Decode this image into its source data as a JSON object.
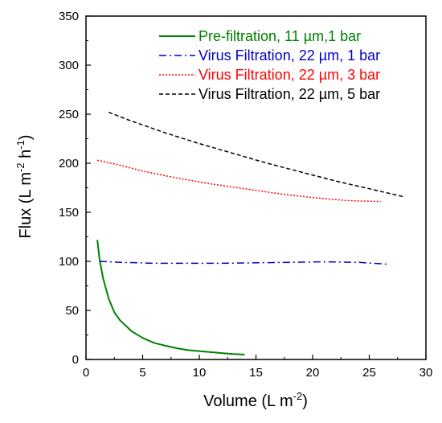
{
  "chart_data": {
    "type": "line",
    "title": "",
    "xlabel": {
      "base": "Volume (L m",
      "sup": "-2",
      "tail": ")"
    },
    "ylabel": {
      "base": "Flux (L m",
      "sup1": "-2",
      "mid": " h",
      "sup2": "-1",
      "tail": ")"
    },
    "xlim": [
      0,
      30
    ],
    "ylim": [
      0,
      350
    ],
    "xticks": [
      0,
      5,
      10,
      15,
      20,
      25,
      30
    ],
    "yticks": [
      0,
      50,
      100,
      150,
      200,
      250,
      300,
      350
    ],
    "grid": false,
    "legend_position": "top-right",
    "series": [
      {
        "name": "Pre-filtration, 11 µm,1 bar",
        "color": "#008000",
        "dash": "solid",
        "x": [
          1.0,
          1.2,
          1.5,
          2.0,
          2.5,
          3.0,
          4.0,
          5.0,
          6.0,
          7.0,
          8.0,
          9.0,
          10.0,
          11.0,
          12.0,
          13.0,
          14.0
        ],
        "y": [
          122,
          102,
          83,
          62,
          48,
          40,
          29,
          22,
          17,
          14,
          11.5,
          9.5,
          8.5,
          7.5,
          6.5,
          5.5,
          5
        ]
      },
      {
        "name": "Virus Filtration, 22 µm, 1 bar",
        "color": "#0000cc",
        "dash": "dash-dot",
        "x": [
          1.2,
          3,
          6,
          9,
          12,
          15,
          18,
          21,
          24,
          26.8
        ],
        "y": [
          100,
          99,
          98,
          98,
          98,
          98.5,
          99,
          99.5,
          99,
          97
        ]
      },
      {
        "name": "Virus Filtration, 22 µm, 3 bar",
        "color": "#ff0000",
        "dash": "dotted",
        "x": [
          1.0,
          3,
          5,
          8,
          11,
          14,
          17,
          20,
          23,
          26
        ],
        "y": [
          203,
          198,
          192,
          185,
          179,
          174,
          169,
          165,
          162,
          161
        ]
      },
      {
        "name": "Virus Filtration, 22 µm, 5 bar",
        "color": "#000000",
        "dash": "dashed",
        "x": [
          2.0,
          4,
          7,
          10,
          13,
          16,
          19,
          22,
          25,
          28
        ],
        "y": [
          252,
          243,
          231,
          220,
          210,
          200,
          191,
          182,
          174,
          166
        ]
      }
    ]
  }
}
